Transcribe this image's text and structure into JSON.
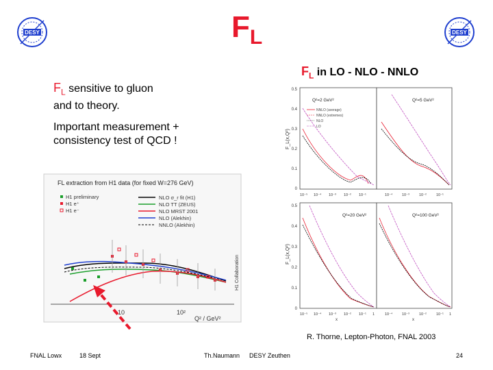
{
  "slide": {
    "title_main": "F",
    "title_sub": "L",
    "subtitle": {
      "fl_main": "F",
      "fl_sub": "L",
      "text": " in  LO - NLO - NNLO"
    },
    "text1": {
      "fl_main": "F",
      "fl_sub": "L",
      "line1": " sensitive to gluon",
      "line2": "and to theory."
    },
    "text2": {
      "line1": "Important measurement +",
      "line2": "consistency test of QCD !"
    },
    "credit": "R. Thorne, Lepton-Photon, FNAL 2003",
    "logo_text": "DESY"
  },
  "footer": {
    "left": "FNAL Lowx",
    "date": "18 Sept",
    "author": "Th.Naumann",
    "institute": "DESY Zeuthen",
    "page": "24"
  },
  "left_plot": {
    "title": "FL extraction from H1 data (for fixed W=276 GeV)",
    "side_label": "H1 Collaboration",
    "xlabel": "Q² / GeV²",
    "x_ticks": [
      "10",
      "10²"
    ],
    "legend_left": [
      "H1 preliminary",
      "H1 e⁺",
      "H1 e⁻"
    ],
    "legend_right": [
      "NLO σ_r fit (H1)",
      "NLO TT (ZEUS)",
      "NLO MRST 2001",
      "NLO (Alekhin)",
      "NNLO (Alekhin)"
    ],
    "colors": {
      "red": "#e8192c",
      "green": "#1a9e2a",
      "blue": "#1f3fcf",
      "black": "#000000",
      "gray": "#888888"
    }
  },
  "right_plot": {
    "legend": [
      "NNLO (average)",
      "NNLO (extremes)",
      "NLO",
      "LO"
    ],
    "panels": [
      {
        "label": "Q²=2 GeV²"
      },
      {
        "label": "Q²=5 GeV²"
      },
      {
        "label": "Q²=20 GeV²"
      },
      {
        "label": "Q²=100 GeV²"
      }
    ],
    "y_ticks_top": [
      "0.5",
      "0.4",
      "0.3",
      "0.2",
      "0.1",
      "0"
    ],
    "y_ticks_bottom": [
      "0.5",
      "0.4",
      "0.3",
      "0.2",
      "0.1",
      "0"
    ],
    "x_ticks": [
      "10⁻⁵",
      "10⁻⁴",
      "10⁻³",
      "10⁻²",
      "10⁻¹",
      "1"
    ],
    "ylabel": "F_L(x,Q²)",
    "xlabel": "x"
  }
}
